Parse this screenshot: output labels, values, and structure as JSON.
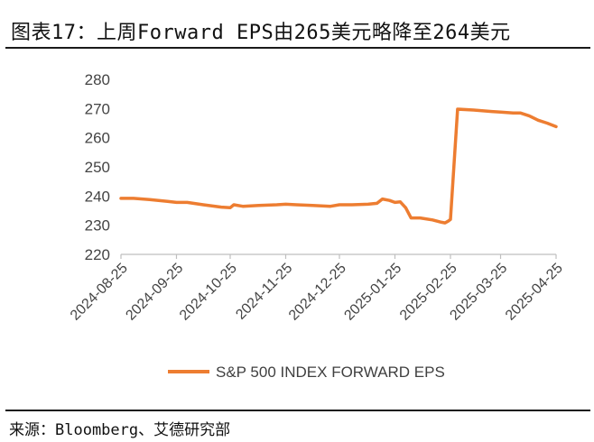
{
  "title": "图表17：上周Forward EPS由265美元略降至264美元",
  "source": "来源：Bloomberg、艾德研究部",
  "chart_data": {
    "type": "line",
    "title": "图表17：上周Forward EPS由265美元略降至264美元",
    "xlabel": "",
    "ylabel": "",
    "ylim": [
      220,
      280
    ],
    "yticks": [
      220,
      230,
      240,
      250,
      260,
      270,
      280
    ],
    "xlim": [
      "2024-08-25",
      "2025-04-25"
    ],
    "x_tick_labels": [
      "2024-08-25",
      "2024-09-25",
      "2024-10-25",
      "2024-11-25",
      "2024-12-25",
      "2025-01-25",
      "2025-02-25",
      "2025-03-25",
      "2025-04-25"
    ],
    "grid": false,
    "legend_position": "bottom-center",
    "color": "#ed7d31",
    "series": [
      {
        "name": "S&P 500 INDEX FORWARD EPS",
        "x": [
          "2024-08-25",
          "2024-09-01",
          "2024-09-10",
          "2024-09-20",
          "2024-09-25",
          "2024-10-01",
          "2024-10-10",
          "2024-10-20",
          "2024-10-25",
          "2024-10-27",
          "2024-11-01",
          "2024-11-10",
          "2024-11-20",
          "2024-11-25",
          "2024-12-01",
          "2024-12-10",
          "2024-12-20",
          "2024-12-25",
          "2025-01-01",
          "2025-01-10",
          "2025-01-15",
          "2025-01-18",
          "2025-01-22",
          "2025-01-25",
          "2025-01-28",
          "2025-01-31",
          "2025-02-03",
          "2025-02-08",
          "2025-02-15",
          "2025-02-20",
          "2025-02-22",
          "2025-02-24",
          "2025-02-25",
          "2025-03-01",
          "2025-03-10",
          "2025-03-20",
          "2025-03-25",
          "2025-04-01",
          "2025-04-05",
          "2025-04-10",
          "2025-04-15",
          "2025-04-20",
          "2025-04-25"
        ],
        "values": [
          239.2,
          239.2,
          238.8,
          238.2,
          237.8,
          237.8,
          237.0,
          236.2,
          236.0,
          237.0,
          236.5,
          236.8,
          237.0,
          237.2,
          237.0,
          236.8,
          236.5,
          237.0,
          237.0,
          237.2,
          237.5,
          239.0,
          238.5,
          237.8,
          238.0,
          236.0,
          232.5,
          232.5,
          231.8,
          231.0,
          230.8,
          231.5,
          232.0,
          269.8,
          269.5,
          269.0,
          268.8,
          268.5,
          268.5,
          267.5,
          266.0,
          265.0,
          263.8
        ]
      }
    ]
  }
}
